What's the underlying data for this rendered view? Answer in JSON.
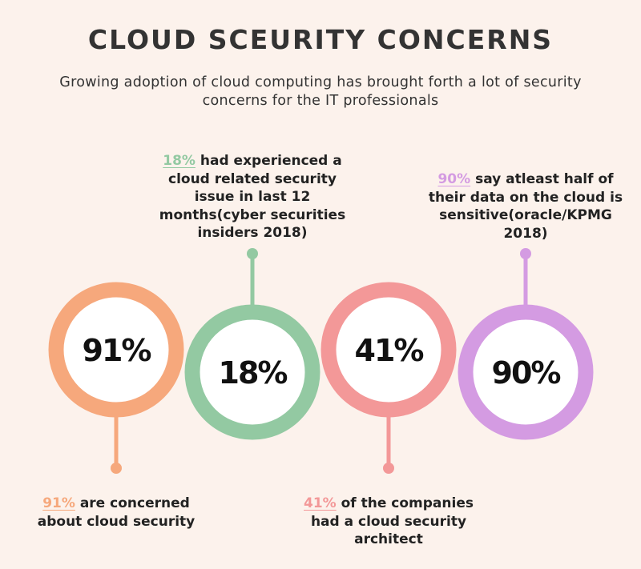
{
  "title": "CLOUD SCEURITY CONCERNS",
  "subtitle": "Growing adoption of cloud computing has brought forth a lot of security concerns for the IT professionals",
  "items": [
    {
      "value": "91%",
      "highlight": "91%",
      "text_line1": " are concerned",
      "text_rest": [
        "about cloud security"
      ],
      "color": "#f6a87c"
    },
    {
      "value": "18%",
      "highlight": "18%",
      "text_line1": " had experienced a",
      "text_rest": [
        "cloud related security",
        "issue in last 12",
        "months(cyber securities",
        "insiders 2018)"
      ],
      "color": "#93c9a2"
    },
    {
      "value": "41%",
      "highlight": "41%",
      "text_line1": " of the companies",
      "text_rest": [
        "had a cloud security",
        "architect"
      ],
      "color": "#f39898"
    },
    {
      "value": "90%",
      "highlight": "90%",
      "text_line1": " say atleast half of",
      "text_rest": [
        "their data on the cloud is",
        "sensitive(oracle/KPMG",
        "2018)"
      ],
      "color": "#d49be2"
    }
  ]
}
